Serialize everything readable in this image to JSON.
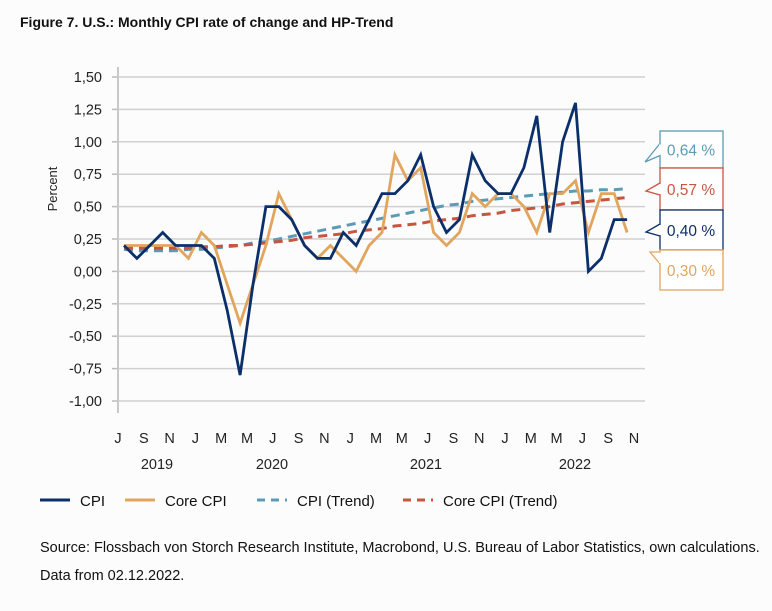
{
  "title": "Figure 7. U.S.: Monthly CPI rate of change and HP-Trend",
  "source": "Source: Flossbach von Storch Research Institute, Macrobond, U.S. Bureau of Labor Statistics, own calculations. Data from 02.12.2022.",
  "chart_data": {
    "type": "line",
    "title": "Figure 7. U.S.: Monthly CPI rate of change and HP-Trend",
    "ylabel": "Percent",
    "ylim": [
      -1.0,
      1.5
    ],
    "yticks": [
      "1,50",
      "1,25",
      "1,00",
      "0,75",
      "0,50",
      "0,25",
      "0,00",
      "-0,25",
      "-0,50",
      "-0,75",
      "-1,00"
    ],
    "xtick_labels": [
      "J",
      "S",
      "N",
      "J",
      "M",
      "M",
      "J",
      "S",
      "N",
      "J",
      "M",
      "M",
      "J",
      "S",
      "N",
      "J",
      "M",
      "M",
      "J",
      "S",
      "N"
    ],
    "year_labels": [
      "2019",
      "2020",
      "2021",
      "2022"
    ],
    "x": [
      "2019-07",
      "2019-08",
      "2019-09",
      "2019-10",
      "2019-11",
      "2019-12",
      "2020-01",
      "2020-02",
      "2020-03",
      "2020-04",
      "2020-05",
      "2020-06",
      "2020-07",
      "2020-08",
      "2020-09",
      "2020-10",
      "2020-11",
      "2020-12",
      "2021-01",
      "2021-02",
      "2021-03",
      "2021-04",
      "2021-05",
      "2021-06",
      "2021-07",
      "2021-08",
      "2021-09",
      "2021-10",
      "2021-11",
      "2021-12",
      "2022-01",
      "2022-02",
      "2022-03",
      "2022-04",
      "2022-05",
      "2022-06",
      "2022-07",
      "2022-08",
      "2022-09",
      "2022-10"
    ],
    "grid": true,
    "legend_placement": "bottom",
    "series": [
      {
        "name": "CPI",
        "color": "#0b2f6b",
        "dash": false,
        "values": [
          0.2,
          0.1,
          0.2,
          0.3,
          0.2,
          0.2,
          0.2,
          0.1,
          -0.3,
          -0.8,
          -0.1,
          0.5,
          0.5,
          0.4,
          0.2,
          0.1,
          0.1,
          0.3,
          0.2,
          0.4,
          0.6,
          0.6,
          0.7,
          0.9,
          0.5,
          0.3,
          0.4,
          0.9,
          0.7,
          0.6,
          0.6,
          0.8,
          1.2,
          0.3,
          1.0,
          1.3,
          0.0,
          0.1,
          0.4,
          0.4
        ]
      },
      {
        "name": "Core CPI",
        "color": "#e2a55e",
        "dash": false,
        "values": [
          0.2,
          0.2,
          0.2,
          0.2,
          0.2,
          0.1,
          0.3,
          0.2,
          -0.1,
          -0.4,
          -0.1,
          0.2,
          0.6,
          0.4,
          0.2,
          0.1,
          0.2,
          0.1,
          0.0,
          0.2,
          0.3,
          0.9,
          0.7,
          0.8,
          0.3,
          0.2,
          0.3,
          0.6,
          0.5,
          0.6,
          0.6,
          0.5,
          0.3,
          0.6,
          0.6,
          0.7,
          0.3,
          0.6,
          0.6,
          0.3
        ]
      },
      {
        "name": "CPI (Trend)",
        "color": "#5b9bb6",
        "dash": true,
        "values": [
          0.17,
          0.16,
          0.16,
          0.16,
          0.16,
          0.17,
          0.17,
          0.18,
          0.19,
          0.2,
          0.22,
          0.23,
          0.25,
          0.27,
          0.29,
          0.31,
          0.33,
          0.35,
          0.37,
          0.39,
          0.41,
          0.43,
          0.45,
          0.47,
          0.49,
          0.51,
          0.52,
          0.54,
          0.55,
          0.56,
          0.57,
          0.58,
          0.59,
          0.6,
          0.61,
          0.62,
          0.62,
          0.63,
          0.63,
          0.64
        ]
      },
      {
        "name": "Core CPI (Trend)",
        "color": "#c85540",
        "dash": true,
        "values": [
          0.18,
          0.18,
          0.18,
          0.18,
          0.18,
          0.18,
          0.19,
          0.19,
          0.2,
          0.2,
          0.21,
          0.22,
          0.23,
          0.24,
          0.26,
          0.27,
          0.28,
          0.29,
          0.31,
          0.32,
          0.33,
          0.35,
          0.36,
          0.37,
          0.39,
          0.4,
          0.41,
          0.43,
          0.44,
          0.45,
          0.47,
          0.48,
          0.49,
          0.5,
          0.52,
          0.53,
          0.54,
          0.55,
          0.56,
          0.57
        ]
      }
    ],
    "annotations": [
      {
        "text": "0,64 %",
        "color": "#5b9bb6"
      },
      {
        "text": "0,57 %",
        "color": "#c85540"
      },
      {
        "text": "0,40 %",
        "color": "#0b2f6b"
      },
      {
        "text": "0,30 %",
        "color": "#e2a55e"
      }
    ]
  }
}
